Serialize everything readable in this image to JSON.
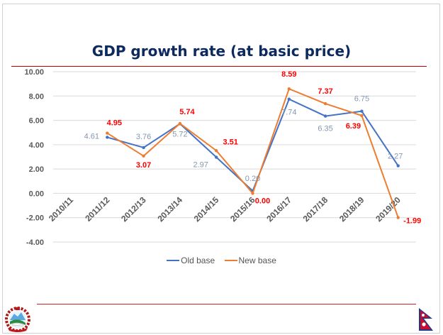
{
  "slide": {
    "title": "GDP growth rate (at basic price)",
    "emblem_icon": "nepal-emblem-icon",
    "flag_icon": "nepal-flag-icon"
  },
  "chart_data": {
    "type": "line",
    "title": "GDP growth rate (at basic price)",
    "xlabel": "",
    "ylabel": "",
    "categories": [
      "2010/11",
      "2011/12",
      "2012/13",
      "2013/14",
      "2014/15",
      "2015/16",
      "2016/17",
      "2017/18",
      "2018/19",
      "2019/20"
    ],
    "ylim": [
      -4,
      10
    ],
    "yticks": [
      "10.00",
      "8.00",
      "6.00",
      "4.00",
      "2.00",
      "0.00",
      "-2.00",
      "-4.00"
    ],
    "ytick_values": [
      10,
      8,
      6,
      4,
      2,
      0,
      -2,
      -4
    ],
    "grid": true,
    "legend_position": "bottom",
    "series": [
      {
        "name": "Old base",
        "color": "#4472c4",
        "label_color": "#8497b0",
        "values": [
          null,
          4.61,
          3.76,
          5.72,
          2.97,
          0.2,
          7.74,
          6.35,
          6.75,
          2.27
        ],
        "labels": [
          null,
          "4.61",
          "3.76",
          "5.72",
          "2.97",
          "0.20",
          "7.74",
          "6.35",
          "6.75",
          "2.27"
        ]
      },
      {
        "name": "New base",
        "color": "#ed7d31",
        "label_color": "#ff0000",
        "values": [
          null,
          4.95,
          3.07,
          5.74,
          3.51,
          0.0,
          8.59,
          7.37,
          6.39,
          -1.99
        ],
        "labels": [
          null,
          "4.95",
          "3.07",
          "5.74",
          "3.51",
          "0.00",
          "8.59",
          "7.37",
          "6.39",
          "-1.99"
        ]
      }
    ]
  }
}
